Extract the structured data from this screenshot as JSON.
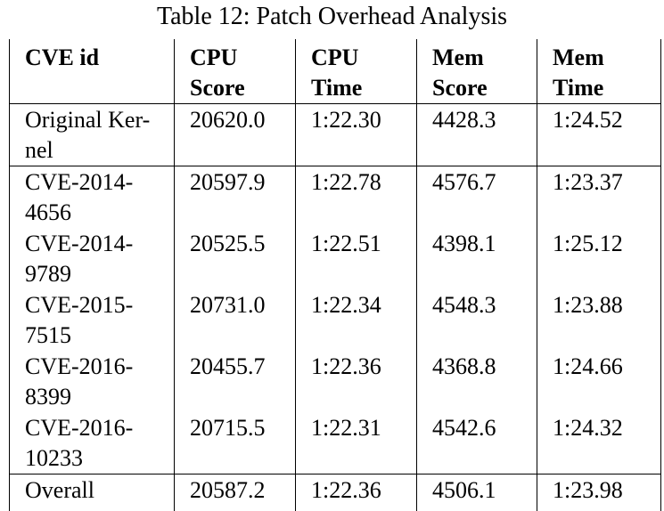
{
  "caption": "Table 12: Patch Overhead Analysis",
  "headers": [
    [
      "CVE id"
    ],
    [
      "CPU",
      "Score"
    ],
    [
      "CPU",
      "Time"
    ],
    [
      "Mem",
      "Score"
    ],
    [
      "Mem",
      "Time"
    ]
  ],
  "rows": [
    {
      "id_lines": [
        "Original Ker-",
        "nel"
      ],
      "cpu_score": "20620.0",
      "cpu_time": "1:22.30",
      "mem_score": "4428.3",
      "mem_time": "1:24.52"
    },
    {
      "id_lines": [
        "CVE-2014-",
        "4656"
      ],
      "cpu_score": "20597.9",
      "cpu_time": "1:22.78",
      "mem_score": "4576.7",
      "mem_time": "1:23.37"
    },
    {
      "id_lines": [
        "CVE-2014-",
        "9789"
      ],
      "cpu_score": "20525.5",
      "cpu_time": "1:22.51",
      "mem_score": "4398.1",
      "mem_time": "1:25.12"
    },
    {
      "id_lines": [
        "CVE-2015-",
        "7515"
      ],
      "cpu_score": "20731.0",
      "cpu_time": "1:22.34",
      "mem_score": "4548.3",
      "mem_time": "1:23.88"
    },
    {
      "id_lines": [
        "CVE-2016-",
        "8399"
      ],
      "cpu_score": "20455.7",
      "cpu_time": "1:22.36",
      "mem_score": "4368.8",
      "mem_time": "1:24.66"
    },
    {
      "id_lines": [
        "CVE-2016-",
        "10233"
      ],
      "cpu_score": "20715.5",
      "cpu_time": "1:22.31",
      "mem_score": "4542.6",
      "mem_time": "1:24.32"
    },
    {
      "id_lines": [
        "Overall"
      ],
      "cpu_score": "20587.2",
      "cpu_time": "1:22.36",
      "mem_score": "4506.1",
      "mem_time": "1:23.98"
    }
  ]
}
